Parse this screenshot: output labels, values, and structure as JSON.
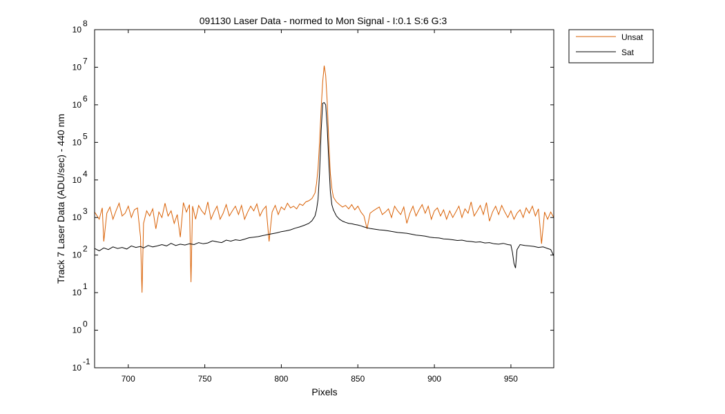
{
  "chart_data": {
    "type": "line",
    "title": "091130 Laser Data - normed to Mon Signal -   I:0.1  S:6  G:3",
    "xlabel": "Pixels",
    "ylabel": "Track 7 Laser Data (ADU/sec) - 440 nm",
    "xlim": [
      678,
      978
    ],
    "ylim": [
      0.1,
      100000000
    ],
    "yscale": "log",
    "grid": false,
    "legend_position": "outside-top-right",
    "x_ticks": [
      "700",
      "750",
      "800",
      "850",
      "900",
      "950"
    ],
    "y_ticks": [
      {
        "base": "10",
        "exp": "-1"
      },
      {
        "base": "10",
        "exp": "0"
      },
      {
        "base": "10",
        "exp": "1"
      },
      {
        "base": "10",
        "exp": "2"
      },
      {
        "base": "10",
        "exp": "3"
      },
      {
        "base": "10",
        "exp": "4"
      },
      {
        "base": "10",
        "exp": "5"
      },
      {
        "base": "10",
        "exp": "6"
      },
      {
        "base": "10",
        "exp": "7"
      },
      {
        "base": "10",
        "exp": "8"
      }
    ],
    "series": [
      {
        "name": "Unsat",
        "color": "#d95f02",
        "points": [
          [
            678,
            1400
          ],
          [
            681,
            900
          ],
          [
            683,
            1800
          ],
          [
            684,
            230
          ],
          [
            686,
            1300
          ],
          [
            688,
            1900
          ],
          [
            690,
            900
          ],
          [
            692,
            1500
          ],
          [
            694,
            2400
          ],
          [
            696,
            1100
          ],
          [
            698,
            1300
          ],
          [
            700,
            2000
          ],
          [
            702,
            1000
          ],
          [
            704,
            1600
          ],
          [
            706,
            1800
          ],
          [
            708,
            300
          ],
          [
            709,
            10
          ],
          [
            710,
            700
          ],
          [
            712,
            1500
          ],
          [
            714,
            1100
          ],
          [
            716,
            1700
          ],
          [
            718,
            500
          ],
          [
            720,
            1400
          ],
          [
            722,
            1000
          ],
          [
            724,
            2400
          ],
          [
            726,
            1100
          ],
          [
            728,
            1500
          ],
          [
            730,
            700
          ],
          [
            732,
            1200
          ],
          [
            734,
            300
          ],
          [
            736,
            2500
          ],
          [
            738,
            1400
          ],
          [
            740,
            2200
          ],
          [
            741,
            19
          ],
          [
            742,
            2000
          ],
          [
            744,
            900
          ],
          [
            746,
            2100
          ],
          [
            748,
            1500
          ],
          [
            750,
            1200
          ],
          [
            752,
            2600
          ],
          [
            754,
            900
          ],
          [
            756,
            1400
          ],
          [
            758,
            2000
          ],
          [
            760,
            900
          ],
          [
            762,
            1300
          ],
          [
            764,
            2200
          ],
          [
            766,
            1100
          ],
          [
            768,
            1500
          ],
          [
            770,
            2000
          ],
          [
            772,
            1200
          ],
          [
            774,
            2100
          ],
          [
            776,
            900
          ],
          [
            778,
            1400
          ],
          [
            780,
            2000
          ],
          [
            782,
            1500
          ],
          [
            784,
            2300
          ],
          [
            786,
            1100
          ],
          [
            788,
            1600
          ],
          [
            790,
            2000
          ],
          [
            792,
            230
          ],
          [
            794,
            1400
          ],
          [
            796,
            2100
          ],
          [
            798,
            1200
          ],
          [
            800,
            1900
          ],
          [
            802,
            1600
          ],
          [
            804,
            2400
          ],
          [
            806,
            1800
          ],
          [
            808,
            2000
          ],
          [
            810,
            1700
          ],
          [
            812,
            2300
          ],
          [
            814,
            2100
          ],
          [
            816,
            2600
          ],
          [
            818,
            2800
          ],
          [
            820,
            3200
          ],
          [
            822,
            4500
          ],
          [
            823,
            8000
          ],
          [
            824,
            20000
          ],
          [
            825,
            100000
          ],
          [
            826,
            800000
          ],
          [
            827,
            4000000
          ],
          [
            828,
            11000000
          ],
          [
            829,
            6000000
          ],
          [
            830,
            1200000
          ],
          [
            831,
            100000
          ],
          [
            832,
            15000
          ],
          [
            833,
            6000
          ],
          [
            834,
            3500
          ],
          [
            836,
            2600
          ],
          [
            838,
            2200
          ],
          [
            840,
            1900
          ],
          [
            842,
            2100
          ],
          [
            844,
            1700
          ],
          [
            846,
            2200
          ],
          [
            848,
            1600
          ],
          [
            850,
            2000
          ],
          [
            852,
            1400
          ],
          [
            854,
            1100
          ],
          [
            856,
            500
          ],
          [
            858,
            1300
          ],
          [
            860,
            1500
          ],
          [
            862,
            1700
          ],
          [
            864,
            1900
          ],
          [
            866,
            1200
          ],
          [
            868,
            1400
          ],
          [
            870,
            1700
          ],
          [
            872,
            1000
          ],
          [
            874,
            2000
          ],
          [
            876,
            1500
          ],
          [
            878,
            1200
          ],
          [
            880,
            1900
          ],
          [
            882,
            700
          ],
          [
            884,
            1300
          ],
          [
            886,
            2000
          ],
          [
            888,
            1100
          ],
          [
            890,
            1600
          ],
          [
            892,
            2200
          ],
          [
            894,
            1300
          ],
          [
            896,
            2000
          ],
          [
            898,
            900
          ],
          [
            900,
            1500
          ],
          [
            902,
            1800
          ],
          [
            904,
            1100
          ],
          [
            906,
            1600
          ],
          [
            908,
            900
          ],
          [
            910,
            1500
          ],
          [
            912,
            1000
          ],
          [
            914,
            1400
          ],
          [
            916,
            2000
          ],
          [
            918,
            1000
          ],
          [
            920,
            1700
          ],
          [
            922,
            1300
          ],
          [
            924,
            2600
          ],
          [
            926,
            1100
          ],
          [
            928,
            1500
          ],
          [
            930,
            2100
          ],
          [
            932,
            1200
          ],
          [
            934,
            2500
          ],
          [
            936,
            800
          ],
          [
            938,
            1400
          ],
          [
            940,
            2000
          ],
          [
            942,
            1200
          ],
          [
            944,
            2100
          ],
          [
            946,
            1400
          ],
          [
            948,
            1000
          ],
          [
            950,
            1500
          ],
          [
            952,
            900
          ],
          [
            954,
            1300
          ],
          [
            956,
            1600
          ],
          [
            958,
            1000
          ],
          [
            960,
            1800
          ],
          [
            962,
            1300
          ],
          [
            964,
            2000
          ],
          [
            966,
            1100
          ],
          [
            968,
            1700
          ],
          [
            970,
            200
          ],
          [
            972,
            1400
          ],
          [
            974,
            900
          ],
          [
            976,
            1400
          ],
          [
            978,
            1000
          ]
        ]
      },
      {
        "name": "Sat",
        "color": "#000000",
        "points": [
          [
            678,
            150
          ],
          [
            681,
            130
          ],
          [
            684,
            155
          ],
          [
            687,
            140
          ],
          [
            690,
            165
          ],
          [
            693,
            150
          ],
          [
            696,
            160
          ],
          [
            699,
            145
          ],
          [
            702,
            175
          ],
          [
            705,
            160
          ],
          [
            708,
            170
          ],
          [
            710,
            155
          ],
          [
            713,
            180
          ],
          [
            716,
            165
          ],
          [
            719,
            175
          ],
          [
            722,
            190
          ],
          [
            725,
            175
          ],
          [
            728,
            205
          ],
          [
            731,
            180
          ],
          [
            734,
            195
          ],
          [
            737,
            185
          ],
          [
            740,
            200
          ],
          [
            743,
            190
          ],
          [
            746,
            215
          ],
          [
            749,
            200
          ],
          [
            752,
            210
          ],
          [
            755,
            240
          ],
          [
            758,
            225
          ],
          [
            761,
            215
          ],
          [
            764,
            250
          ],
          [
            767,
            235
          ],
          [
            770,
            255
          ],
          [
            773,
            245
          ],
          [
            776,
            265
          ],
          [
            779,
            290
          ],
          [
            782,
            300
          ],
          [
            785,
            310
          ],
          [
            788,
            330
          ],
          [
            791,
            350
          ],
          [
            794,
            370
          ],
          [
            797,
            390
          ],
          [
            800,
            420
          ],
          [
            803,
            440
          ],
          [
            806,
            470
          ],
          [
            809,
            520
          ],
          [
            812,
            560
          ],
          [
            815,
            620
          ],
          [
            818,
            700
          ],
          [
            820,
            820
          ],
          [
            822,
            1100
          ],
          [
            823,
            1600
          ],
          [
            824,
            3000
          ],
          [
            825,
            15000
          ],
          [
            826,
            200000
          ],
          [
            827,
            1100000
          ],
          [
            828,
            1150000
          ],
          [
            829,
            1000000
          ],
          [
            830,
            250000
          ],
          [
            831,
            30000
          ],
          [
            832,
            5000
          ],
          [
            833,
            2200
          ],
          [
            834,
            1600
          ],
          [
            836,
            1100
          ],
          [
            838,
            900
          ],
          [
            840,
            800
          ],
          [
            842,
            740
          ],
          [
            844,
            700
          ],
          [
            846,
            680
          ],
          [
            848,
            650
          ],
          [
            850,
            630
          ],
          [
            852,
            600
          ],
          [
            854,
            560
          ],
          [
            856,
            530
          ],
          [
            858,
            510
          ],
          [
            861,
            490
          ],
          [
            864,
            470
          ],
          [
            867,
            460
          ],
          [
            870,
            440
          ],
          [
            873,
            420
          ],
          [
            876,
            400
          ],
          [
            879,
            390
          ],
          [
            882,
            380
          ],
          [
            885,
            360
          ],
          [
            888,
            340
          ],
          [
            891,
            330
          ],
          [
            894,
            320
          ],
          [
            897,
            300
          ],
          [
            900,
            290
          ],
          [
            903,
            285
          ],
          [
            906,
            270
          ],
          [
            909,
            265
          ],
          [
            912,
            255
          ],
          [
            915,
            245
          ],
          [
            918,
            250
          ],
          [
            921,
            235
          ],
          [
            924,
            230
          ],
          [
            927,
            220
          ],
          [
            930,
            225
          ],
          [
            933,
            210
          ],
          [
            936,
            215
          ],
          [
            939,
            200
          ],
          [
            942,
            195
          ],
          [
            945,
            205
          ],
          [
            948,
            190
          ],
          [
            950,
            185
          ],
          [
            951,
            120
          ],
          [
            952,
            60
          ],
          [
            953,
            45
          ],
          [
            954,
            140
          ],
          [
            956,
            190
          ],
          [
            959,
            180
          ],
          [
            962,
            175
          ],
          [
            965,
            170
          ],
          [
            968,
            160
          ],
          [
            971,
            165
          ],
          [
            974,
            150
          ],
          [
            976,
            140
          ],
          [
            978,
            95
          ]
        ]
      }
    ]
  }
}
